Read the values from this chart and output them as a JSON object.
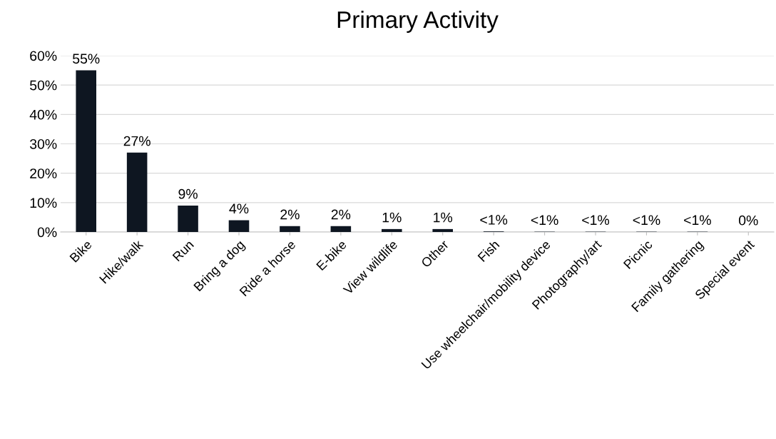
{
  "chart_data": {
    "type": "bar",
    "title": "Primary Activity",
    "categories": [
      "Bike",
      "Hike/walk",
      "Run",
      "Bring a dog",
      "Ride a horse",
      "E-bike",
      "View wildlife",
      "Other",
      "Fish",
      "Use wheelchair/mobility device",
      "Photography/art",
      "Picnic",
      "Family gathering",
      "Special event"
    ],
    "values": [
      55,
      27,
      9,
      4,
      2,
      2,
      1,
      1,
      0.2,
      0.1,
      0.1,
      0.1,
      0.1,
      0
    ],
    "value_labels": [
      "55%",
      "27%",
      "9%",
      "4%",
      "2%",
      "2%",
      "1%",
      "1%",
      "<1%",
      "<1%",
      "<1%",
      "<1%",
      "<1%",
      "0%"
    ],
    "color": "#0e1621",
    "ylim": [
      0,
      60
    ],
    "yticks": [
      {
        "value": 0,
        "label": "0%"
      },
      {
        "value": 10,
        "label": "10%"
      },
      {
        "value": 20,
        "label": "20%"
      },
      {
        "value": 30,
        "label": "30%"
      },
      {
        "value": 40,
        "label": "40%"
      },
      {
        "value": 50,
        "label": "50%"
      },
      {
        "value": 60,
        "label": "60%"
      }
    ],
    "grid": "y"
  }
}
